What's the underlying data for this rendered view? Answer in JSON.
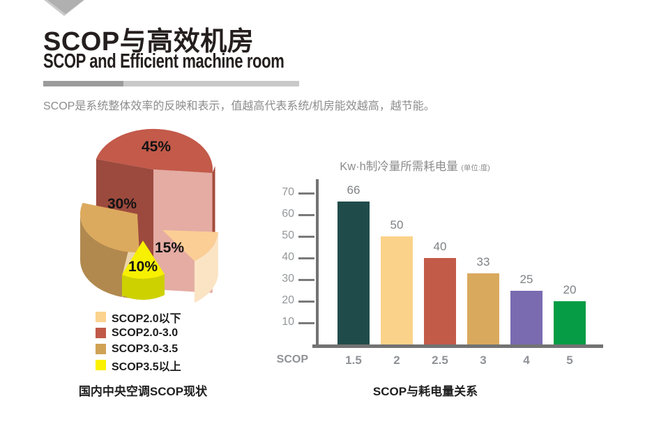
{
  "header": {
    "title_zh": "SCOP与高效机房",
    "title_en": "SCOP and Efficient machine room",
    "intro": "SCOP是系统整体效率的反映和表示，值越高代表系统/机房能效越高，越节能。"
  },
  "pie_colors": {
    "red_top": "#c35a4a",
    "red_front": "#e4aca3",
    "red_side": "#a54b3c",
    "red_cut": "#9d4a3e",
    "tan_top": "#dcaa5e",
    "tan_side": "#b1894f",
    "tan_cut": "#ebd5ac",
    "peach_top": "#fbce95",
    "peach_side": "#fbe4c4",
    "yellow_top": "#f7f000",
    "yellow_side": "#ced100"
  },
  "chart_data": [
    {
      "type": "pie",
      "title": "国内中央空调SCOP现状",
      "labels": [
        "SCOP2.0以下",
        "SCOP2.0-3.0",
        "SCOP3.0-3.5",
        "SCOP3.5以上"
      ],
      "values": [
        15,
        45,
        30,
        10
      ],
      "display_labels": [
        "15%",
        "45%",
        "30%",
        "10%"
      ],
      "legend_colors": [
        "#fbd28e",
        "#c05948",
        "#d0a256",
        "#faf200"
      ],
      "legend_position": "bottom-left",
      "note": "3D exploded cylinder pie; slice order on chart: 45% red top, 30% tan left, 15% peach lower-right, 10% yellow front"
    },
    {
      "type": "bar",
      "title": "Kw·h制冷量所需耗电量",
      "title_unit": "(单位:度)",
      "xlabel": "SCOP",
      "ylabel": "",
      "categories": [
        "1.5",
        "2",
        "2.5",
        "3",
        "4",
        "5"
      ],
      "values": [
        66,
        50,
        40,
        33,
        25,
        20
      ],
      "colors": [
        "#1f4c4b",
        "#fbd289",
        "#c35b49",
        "#d9a95e",
        "#7a6bb0",
        "#069c45"
      ],
      "yticks": [
        10,
        20,
        30,
        40,
        50,
        60,
        70
      ],
      "ylim": [
        0,
        75
      ],
      "grid": false,
      "legend": false,
      "caption": "SCOP与耗电量关系"
    }
  ]
}
